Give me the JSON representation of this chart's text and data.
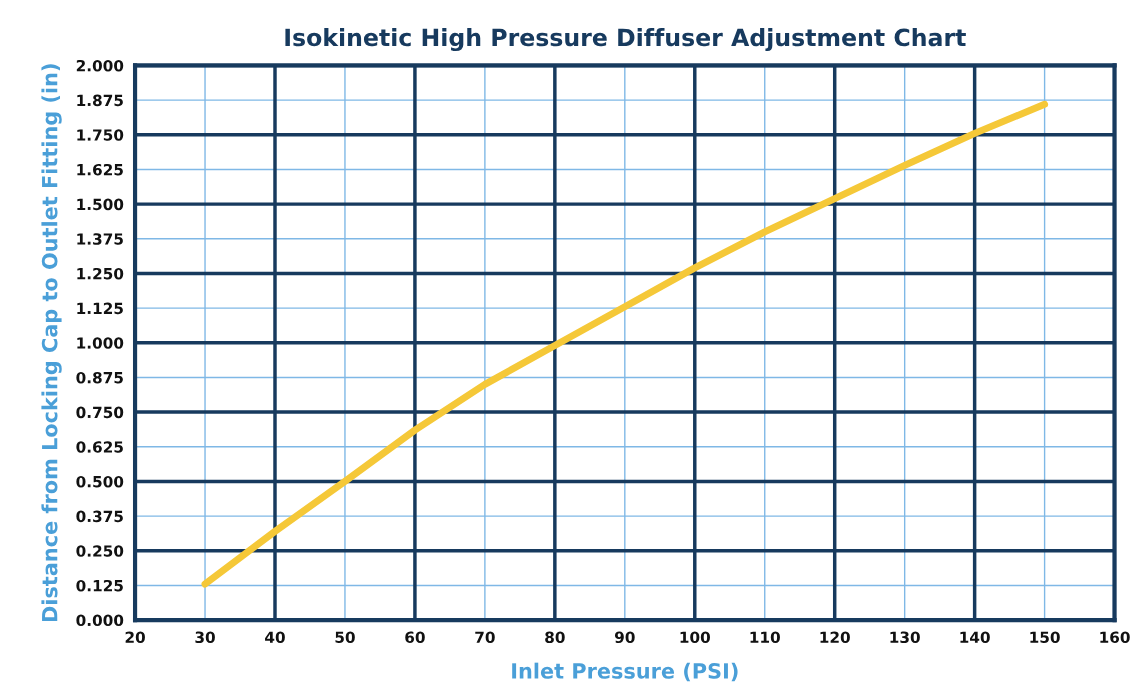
{
  "chart_data": {
    "type": "line",
    "title": "Isokinetic High Pressure Diffuser Adjustment Chart",
    "xlabel": "Inlet Pressure (PSI)",
    "ylabel": "Distance from Locking Cap to Outlet Fitting (in)",
    "x": [
      30,
      40,
      50,
      60,
      70,
      80,
      90,
      100,
      110,
      120,
      130,
      140,
      150
    ],
    "series": [
      {
        "color": "#f5c838",
        "values": [
          0.13,
          0.32,
          0.5,
          0.685,
          0.85,
          0.99,
          1.13,
          1.27,
          1.4,
          1.52,
          1.64,
          1.755,
          1.86
        ]
      }
    ],
    "xlim": [
      20,
      160
    ],
    "xticks": [
      20,
      30,
      40,
      50,
      60,
      70,
      80,
      90,
      100,
      110,
      120,
      130,
      140,
      150,
      160
    ],
    "ylim": [
      0,
      2
    ],
    "yticks": [
      {
        "value": 0,
        "label": "0.000"
      },
      {
        "value": 0.125,
        "label": "0.125"
      },
      {
        "value": 0.25,
        "label": "0.250"
      },
      {
        "value": 0.375,
        "label": "0.375"
      },
      {
        "value": 0.5,
        "label": "0.500"
      },
      {
        "value": 0.625,
        "label": "0.625"
      },
      {
        "value": 0.75,
        "label": "0.750"
      },
      {
        "value": 0.875,
        "label": "0.875"
      },
      {
        "value": 1,
        "label": "1.000"
      },
      {
        "value": 1.125,
        "label": "1.125"
      },
      {
        "value": 1.25,
        "label": "1.250"
      },
      {
        "value": 1.375,
        "label": "1.375"
      },
      {
        "value": 1.5,
        "label": "1.500"
      },
      {
        "value": 1.625,
        "label": "1.625"
      },
      {
        "value": 1.75,
        "label": "1.750"
      },
      {
        "value": 1.875,
        "label": "1.875"
      },
      {
        "value": 2,
        "label": "2.000"
      }
    ],
    "grid": true,
    "marker": "none",
    "line_style": "solid"
  }
}
